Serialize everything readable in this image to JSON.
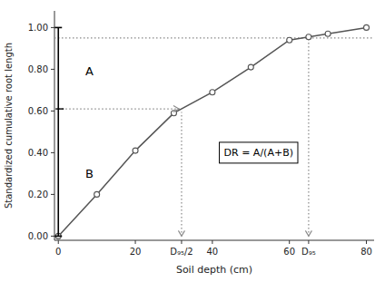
{
  "chart_data": {
    "type": "line",
    "x": [
      0,
      10,
      20,
      30,
      40,
      50,
      60,
      65,
      70,
      80
    ],
    "series": [
      {
        "color": "#555555",
        "marker": "circle",
        "line_style": "solid",
        "values": [
          0.0,
          0.2,
          0.41,
          0.59,
          0.69,
          0.81,
          0.94,
          0.955,
          0.97,
          1.0
        ]
      }
    ],
    "xlim": [
      -1,
      82
    ],
    "ylim": [
      -0.02,
      1.08
    ],
    "xticks": [
      0,
      20,
      {
        "value": 32,
        "label": "D₉₅/2"
      },
      40,
      60,
      {
        "value": 65,
        "label": "D₉₅"
      },
      80
    ],
    "yticks": [
      {
        "value": 0.0,
        "label": "0.00"
      },
      {
        "value": 0.2,
        "label": "0.20"
      },
      {
        "value": 0.4,
        "label": "0.40"
      },
      {
        "value": 0.6,
        "label": "0.60"
      },
      {
        "value": 0.8,
        "label": "0.80"
      },
      {
        "value": 1.0,
        "label": "1.00"
      }
    ],
    "xlabel": "Soil depth (cm)",
    "ylabel": "Standardized cumulative root length",
    "grid": false,
    "reference_lines": [
      {
        "y": 0.95
      },
      {
        "x": [
          0,
          32
        ],
        "y": [
          0.61,
          0.61
        ]
      },
      {
        "x": [
          32,
          32
        ],
        "y": [
          0,
          0.595
        ]
      },
      {
        "x": [
          65,
          65
        ],
        "y": [
          0,
          0.95
        ]
      }
    ],
    "reference_color": "#888888",
    "reference_line_style": "dotted",
    "bracket": {
      "x": 0,
      "y": [
        0.0,
        1.0
      ],
      "mid": 0.61
    },
    "annotations": [
      {
        "text": "A",
        "x": 7,
        "y": 0.77
      },
      {
        "text": "B",
        "x": 7,
        "y": 0.28
      }
    ],
    "formula": {
      "text": "DR = A/(A+B)",
      "x": 52,
      "y": 0.4
    }
  }
}
